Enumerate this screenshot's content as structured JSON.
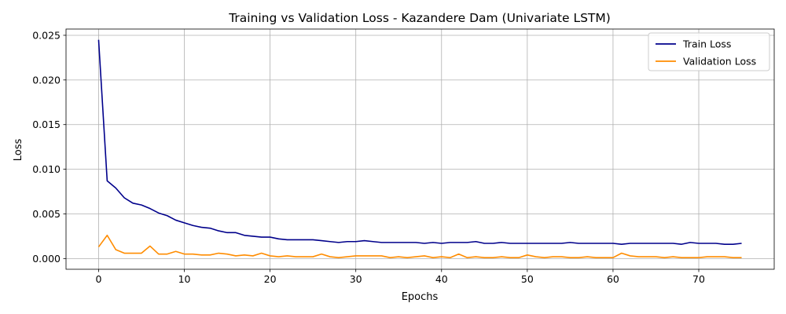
{
  "chart_data": {
    "type": "line",
    "title": "Training vs Validation Loss - Kazandere Dam (Univariate LSTM)",
    "xlabel": "Epochs",
    "ylabel": "Loss",
    "xlim": [
      -3.8,
      78.8
    ],
    "ylim": [
      -0.0012,
      0.0257
    ],
    "x_ticks": [
      0,
      10,
      20,
      30,
      40,
      50,
      60,
      70
    ],
    "y_ticks": [
      0.0,
      0.005,
      0.01,
      0.015,
      0.02,
      0.025
    ],
    "y_tick_labels": [
      "0.000",
      "0.005",
      "0.010",
      "0.015",
      "0.020",
      "0.025"
    ],
    "grid": true,
    "legend_position": "top-right",
    "series": [
      {
        "name": "Train Loss",
        "color": "#00008b",
        "x": [
          0,
          1,
          2,
          3,
          4,
          5,
          6,
          7,
          8,
          9,
          10,
          11,
          12,
          13,
          14,
          15,
          16,
          17,
          18,
          19,
          20,
          21,
          22,
          23,
          24,
          25,
          26,
          27,
          28,
          29,
          30,
          31,
          32,
          33,
          34,
          35,
          36,
          37,
          38,
          39,
          40,
          41,
          42,
          43,
          44,
          45,
          46,
          47,
          48,
          49,
          50,
          51,
          52,
          53,
          54,
          55,
          56,
          57,
          58,
          59,
          60,
          61,
          62,
          63,
          64,
          65,
          66,
          67,
          68,
          69,
          70,
          71,
          72,
          73,
          74,
          75
        ],
        "values": [
          0.0245,
          0.0087,
          0.0079,
          0.0068,
          0.0062,
          0.006,
          0.0056,
          0.0051,
          0.0048,
          0.0043,
          0.004,
          0.0037,
          0.0035,
          0.0034,
          0.0031,
          0.0029,
          0.0029,
          0.0026,
          0.0025,
          0.0024,
          0.0024,
          0.0022,
          0.0021,
          0.0021,
          0.0021,
          0.0021,
          0.002,
          0.0019,
          0.0018,
          0.0019,
          0.0019,
          0.002,
          0.0019,
          0.0018,
          0.0018,
          0.0018,
          0.0018,
          0.0018,
          0.0017,
          0.0018,
          0.0017,
          0.0018,
          0.0018,
          0.0018,
          0.0019,
          0.0017,
          0.0017,
          0.0018,
          0.0017,
          0.0017,
          0.0017,
          0.0017,
          0.0017,
          0.0017,
          0.0017,
          0.0018,
          0.0017,
          0.0017,
          0.0017,
          0.0017,
          0.0017,
          0.0016,
          0.0017,
          0.0017,
          0.0017,
          0.0017,
          0.0017,
          0.0017,
          0.0016,
          0.0018,
          0.0017,
          0.0017,
          0.0017,
          0.0016,
          0.0016,
          0.0017
        ]
      },
      {
        "name": "Validation Loss",
        "color": "#ff8c00",
        "x": [
          0,
          1,
          2,
          3,
          4,
          5,
          6,
          7,
          8,
          9,
          10,
          11,
          12,
          13,
          14,
          15,
          16,
          17,
          18,
          19,
          20,
          21,
          22,
          23,
          24,
          25,
          26,
          27,
          28,
          29,
          30,
          31,
          32,
          33,
          34,
          35,
          36,
          37,
          38,
          39,
          40,
          41,
          42,
          43,
          44,
          45,
          46,
          47,
          48,
          49,
          50,
          51,
          52,
          53,
          54,
          55,
          56,
          57,
          58,
          59,
          60,
          61,
          62,
          63,
          64,
          65,
          66,
          67,
          68,
          69,
          70,
          71,
          72,
          73,
          74,
          75
        ],
        "values": [
          0.0013,
          0.0026,
          0.001,
          0.0006,
          0.0006,
          0.0006,
          0.0014,
          0.0005,
          0.0005,
          0.0008,
          0.0005,
          0.0005,
          0.0004,
          0.0004,
          0.0006,
          0.0005,
          0.0003,
          0.0004,
          0.0003,
          0.0006,
          0.0003,
          0.0002,
          0.0003,
          0.0002,
          0.0002,
          0.0002,
          0.0005,
          0.0002,
          0.0001,
          0.0002,
          0.0003,
          0.0003,
          0.0003,
          0.0003,
          0.0001,
          0.0002,
          0.0001,
          0.0002,
          0.0003,
          0.0001,
          0.0002,
          0.0001,
          0.0005,
          0.0001,
          0.0002,
          0.0001,
          0.0001,
          0.0002,
          0.0001,
          0.0001,
          0.0004,
          0.0002,
          0.0001,
          0.0002,
          0.0002,
          0.0001,
          0.0001,
          0.0002,
          0.0001,
          0.0001,
          0.0001,
          0.0006,
          0.0003,
          0.0002,
          0.0002,
          0.0002,
          0.0001,
          0.0002,
          0.0001,
          0.0001,
          0.0001,
          0.0002,
          0.0002,
          0.0002,
          0.0001,
          0.0001
        ]
      }
    ]
  }
}
